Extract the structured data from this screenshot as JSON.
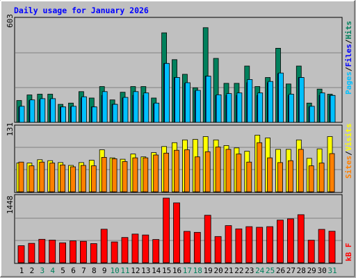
{
  "title": "Daily usage for January 2026",
  "colors": {
    "frame": "#c0c0c0",
    "title": "#0000ff",
    "hits": "#00805c",
    "files": "#0000ff",
    "pages": "#00c0ff",
    "visits": "#ffff00",
    "sites": "#ff8000",
    "kbytes": "#ff0000",
    "grid": "#808080",
    "weekend_day": "#00805c",
    "weekday": "#000000"
  },
  "chart_data": [
    {
      "type": "bar",
      "panel": "top",
      "axis_max_label": "603",
      "ylim": [
        0,
        603
      ],
      "legend": [
        {
          "label": "Pages",
          "color": "#00c0ff"
        },
        {
          "label": "/",
          "color": "#000000"
        },
        {
          "label": "Files",
          "color": "#0000ff"
        },
        {
          "label": "/",
          "color": "#000000"
        },
        {
          "label": "Hits",
          "color": "#00805c"
        }
      ],
      "categories": [
        "1",
        "2",
        "3",
        "4",
        "5",
        "6",
        "7",
        "8",
        "9",
        "10",
        "11",
        "12",
        "13",
        "14",
        "15",
        "16",
        "17",
        "18",
        "19",
        "20",
        "21",
        "22",
        "23",
        "24",
        "25",
        "26",
        "27",
        "28",
        "29",
        "30",
        "31"
      ],
      "series": [
        {
          "name": "Hits",
          "values": [
            137,
            172,
            177,
            177,
            113,
            121,
            193,
            153,
            225,
            141,
            189,
            225,
            225,
            153,
            563,
            394,
            302,
            217,
            595,
            402,
            245,
            245,
            354,
            225,
            282,
            466,
            241,
            354,
            121,
            209,
            177
          ]
        },
        {
          "name": "Files",
          "values": [
            97,
            137,
            141,
            141,
            97,
            97,
            153,
            97,
            169,
            113,
            153,
            169,
            169,
            117,
            370,
            282,
            245,
            197,
            290,
            169,
            169,
            169,
            249,
            169,
            249,
            306,
            169,
            282,
            97,
            169,
            169
          ]
        },
        {
          "name": "Pages",
          "values": [
            101,
            141,
            149,
            149,
            97,
            101,
            161,
            97,
            193,
            113,
            157,
            193,
            185,
            121,
            370,
            282,
            249,
            201,
            290,
            173,
            181,
            185,
            269,
            185,
            257,
            310,
            177,
            282,
            101,
            185,
            169
          ]
        }
      ]
    },
    {
      "type": "bar",
      "panel": "middle",
      "axis_max_label": "131",
      "ylim": [
        0,
        131
      ],
      "legend": [
        {
          "label": "Sites",
          "color": "#ff8000"
        },
        {
          "label": "/",
          "color": "#000000"
        },
        {
          "label": "Visits",
          "color": "#ffff00"
        }
      ],
      "categories": [
        "1",
        "2",
        "3",
        "4",
        "5",
        "6",
        "7",
        "8",
        "9",
        "10",
        "11",
        "12",
        "13",
        "14",
        "15",
        "16",
        "17",
        "18",
        "19",
        "20",
        "21",
        "22",
        "23",
        "24",
        "25",
        "26",
        "27",
        "28",
        "29",
        "30",
        "31"
      ],
      "series": [
        {
          "name": "Visits",
          "values": [
            61,
            61,
            68,
            66,
            62,
            56,
            62,
            67,
            89,
            72,
            69,
            80,
            74,
            83,
            96,
            104,
            110,
            111,
            117,
            110,
            98,
            93,
            86,
            120,
            114,
            90,
            90,
            110,
            71,
            91,
            117
          ]
        },
        {
          "name": "Sites",
          "values": [
            63,
            55,
            63,
            61,
            57,
            53,
            56,
            55,
            73,
            70,
            64,
            72,
            72,
            78,
            82,
            88,
            89,
            74,
            85,
            95,
            90,
            80,
            63,
            104,
            72,
            62,
            66,
            90,
            55,
            61,
            81
          ]
        }
      ]
    },
    {
      "type": "bar",
      "panel": "bottom",
      "axis_max_label": "1448",
      "ylim": [
        0,
        1448
      ],
      "legend": [
        {
          "label": "kB F",
          "color": "#ff0000"
        }
      ],
      "categories": [
        "1",
        "2",
        "3",
        "4",
        "5",
        "6",
        "7",
        "8",
        "9",
        "10",
        "11",
        "12",
        "13",
        "14",
        "15",
        "16",
        "17",
        "18",
        "19",
        "20",
        "21",
        "22",
        "23",
        "24",
        "25",
        "26",
        "27",
        "28",
        "29",
        "30",
        "31"
      ],
      "series": [
        {
          "name": "kB F",
          "values": [
            381,
            434,
            525,
            508,
            445,
            489,
            480,
            428,
            750,
            466,
            565,
            642,
            621,
            520,
            1448,
            1340,
            702,
            681,
            1064,
            587,
            831,
            759,
            808,
            794,
            808,
            954,
            982,
            1076,
            505,
            747,
            705
          ]
        }
      ]
    }
  ]
}
